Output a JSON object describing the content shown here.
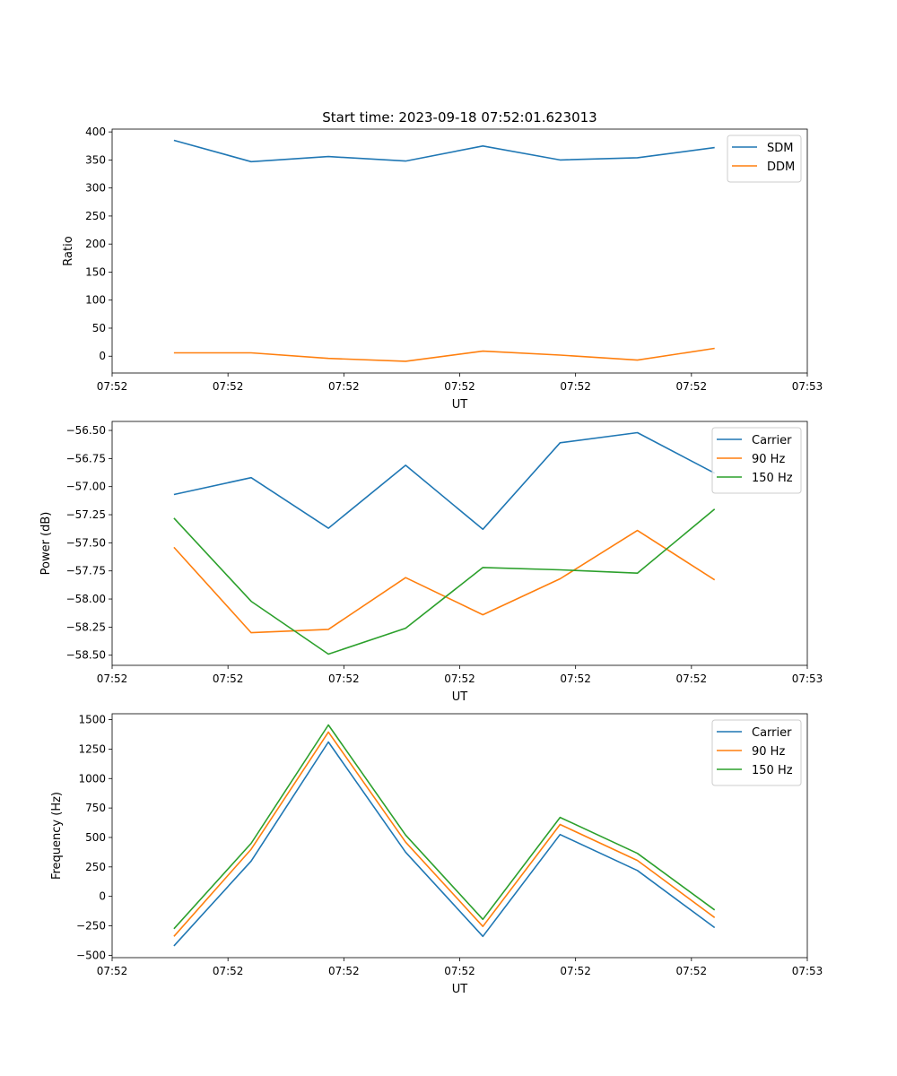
{
  "figure": {
    "title": "Start time: 2023-09-18 07:52:01.623013"
  },
  "colors": {
    "c0": "#1f77b4",
    "c1": "#ff7f0e",
    "c2": "#2ca02c"
  },
  "chart_data": [
    {
      "type": "line",
      "title": "Start time: 2023-09-18 07:52:01.623013",
      "xlabel": "UT",
      "ylabel": "Ratio",
      "x": [
        1,
        2,
        3,
        4,
        5,
        6,
        7,
        8
      ],
      "xlim": [
        0.2,
        9.2
      ],
      "x_ticks": [
        0.2,
        1.7,
        3.2,
        4.7,
        6.2,
        7.7,
        9.2
      ],
      "x_tick_labels": [
        "07:52",
        "07:52",
        "07:52",
        "07:52",
        "07:52",
        "07:52",
        "07:53"
      ],
      "ylim": [
        -30,
        405
      ],
      "y_ticks": [
        0,
        50,
        100,
        150,
        200,
        250,
        300,
        350,
        400
      ],
      "y_tick_labels": [
        "0",
        "50",
        "100",
        "150",
        "200",
        "250",
        "300",
        "350",
        "400"
      ],
      "legend_position": "top-right",
      "series": [
        {
          "name": "SDM",
          "color": "#1f77b4",
          "values": [
            385,
            347,
            356,
            348,
            375,
            350,
            354,
            372
          ]
        },
        {
          "name": "DDM",
          "color": "#ff7f0e",
          "values": [
            6,
            6,
            -4,
            -9,
            9,
            2,
            -7,
            14
          ]
        }
      ]
    },
    {
      "type": "line",
      "title": "",
      "xlabel": "UT",
      "ylabel": "Power (dB)",
      "x": [
        1,
        2,
        3,
        4,
        5,
        6,
        7,
        8
      ],
      "xlim": [
        0.2,
        9.2
      ],
      "x_ticks": [
        0.2,
        1.7,
        3.2,
        4.7,
        6.2,
        7.7,
        9.2
      ],
      "x_tick_labels": [
        "07:52",
        "07:52",
        "07:52",
        "07:52",
        "07:52",
        "07:52",
        "07:53"
      ],
      "ylim": [
        -58.59,
        -56.42
      ],
      "y_ticks": [
        -58.5,
        -58.25,
        -58.0,
        -57.75,
        -57.5,
        -57.25,
        -57.0,
        -56.75,
        -56.5
      ],
      "y_tick_labels": [
        "−58.50",
        "−58.25",
        "−58.00",
        "−57.75",
        "−57.50",
        "−57.25",
        "−57.00",
        "−56.75",
        "−56.50"
      ],
      "legend_position": "top-right",
      "series": [
        {
          "name": "Carrier",
          "color": "#1f77b4",
          "values": [
            -57.07,
            -56.92,
            -57.37,
            -56.81,
            -57.38,
            -56.61,
            -56.52,
            -56.88
          ]
        },
        {
          "name": "90 Hz",
          "color": "#ff7f0e",
          "values": [
            -57.54,
            -58.3,
            -58.27,
            -57.81,
            -58.14,
            -57.82,
            -57.39,
            -57.83
          ]
        },
        {
          "name": "150 Hz",
          "color": "#2ca02c",
          "values": [
            -57.28,
            -58.02,
            -58.49,
            -58.26,
            -57.72,
            -57.74,
            -57.77,
            -57.2
          ]
        }
      ]
    },
    {
      "type": "line",
      "title": "",
      "xlabel": "UT",
      "ylabel": "Frequency (Hz)",
      "x": [
        1,
        2,
        3,
        4,
        5,
        6,
        7,
        8
      ],
      "xlim": [
        0.2,
        9.2
      ],
      "x_ticks": [
        0.2,
        1.7,
        3.2,
        4.7,
        6.2,
        7.7,
        9.2
      ],
      "x_tick_labels": [
        "07:52",
        "07:52",
        "07:52",
        "07:52",
        "07:52",
        "07:52",
        "07:53"
      ],
      "ylim": [
        -520,
        1550
      ],
      "y_ticks": [
        -500,
        -250,
        0,
        250,
        500,
        750,
        1000,
        1250,
        1500
      ],
      "y_tick_labels": [
        "−500",
        "−250",
        "0",
        "250",
        "500",
        "750",
        "1000",
        "1250",
        "1500"
      ],
      "legend_position": "top-right",
      "series": [
        {
          "name": "Carrier",
          "color": "#1f77b4",
          "values": [
            -420,
            300,
            1310,
            375,
            -340,
            525,
            220,
            -265
          ]
        },
        {
          "name": "90 Hz",
          "color": "#ff7f0e",
          "values": [
            -340,
            400,
            1395,
            460,
            -255,
            610,
            305,
            -180
          ]
        },
        {
          "name": "150 Hz",
          "color": "#2ca02c",
          "values": [
            -275,
            450,
            1455,
            520,
            -195,
            670,
            365,
            -115
          ]
        }
      ]
    }
  ]
}
